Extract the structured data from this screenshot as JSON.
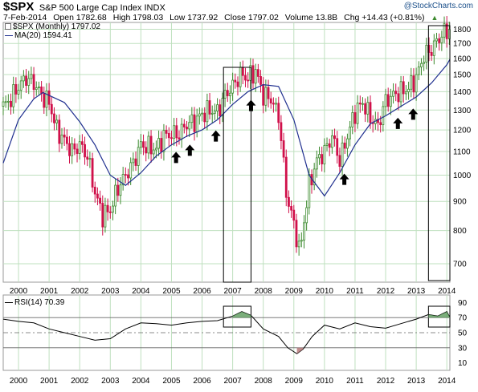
{
  "header": {
    "symbol": "$SPX",
    "index_name": "S&P 500 Large Cap Index",
    "exchange": "INDX",
    "logo_text": "@StockCharts.com",
    "date": "7-Feb-2014",
    "open": "Open 1782.68",
    "high": "High 1798.03",
    "low": "Low 1737.92",
    "close": "Close 1797.02",
    "volume": "Volume 13.8B",
    "change": "Chg +14.43 (+0.81%)",
    "change_icon": "triangle-up-icon"
  },
  "legend": {
    "price_label": "$SPX (Monthly) 1797.02",
    "ma_label": "MA(20) 1594.41"
  },
  "rsi": {
    "label": "RSI(14) 70.39"
  },
  "colors": {
    "up": "#3c8a2e",
    "down": "#d0104a",
    "ma": "#1f2f8f",
    "grid": "#bfe0bf",
    "rsi_line": "#000000",
    "rsi_fill_over": "#5a9a5a",
    "rsi_fill_under": "#b07070",
    "annotation": "#000000"
  },
  "chart_data": [
    {
      "type": "candlestick",
      "title": "$SPX S&P 500 Large Cap Index INDX",
      "yscale": "log",
      "ylim": [
        650,
        1850
      ],
      "yticks": [
        700,
        800,
        900,
        1000,
        1100,
        1200,
        1300,
        1400,
        1500,
        1600,
        1700,
        1800
      ],
      "x_start": 1999.5,
      "x_end": 2014.1,
      "xticks": [
        "2000",
        "2001",
        "2002",
        "2003",
        "2004",
        "2005",
        "2006",
        "2007",
        "2008",
        "2009",
        "2010",
        "2011",
        "2012",
        "2013",
        "2014"
      ],
      "grid": true,
      "series": [
        {
          "name": "$SPX (Monthly)",
          "x": [
            1999.5,
            1999.75,
            2000.0,
            2000.25,
            2000.5,
            2000.75,
            2001.0,
            2001.25,
            2001.5,
            2001.75,
            2002.0,
            2002.25,
            2002.5,
            2002.75,
            2003.0,
            2003.25,
            2003.5,
            2003.75,
            2004.0,
            2004.25,
            2004.5,
            2004.75,
            2005.0,
            2005.25,
            2005.5,
            2005.75,
            2006.0,
            2006.25,
            2006.5,
            2006.75,
            2007.0,
            2007.25,
            2007.5,
            2007.75,
            2008.0,
            2008.25,
            2008.5,
            2008.75,
            2009.0,
            2009.2,
            2009.5,
            2009.75,
            2010.0,
            2010.25,
            2010.5,
            2010.75,
            2011.0,
            2011.25,
            2011.5,
            2011.75,
            2012.0,
            2012.25,
            2012.5,
            2012.75,
            2013.0,
            2013.25,
            2013.5,
            2013.75,
            2014.0,
            2014.1
          ],
          "y": [
            1320,
            1360,
            1430,
            1480,
            1450,
            1380,
            1340,
            1200,
            1150,
            1100,
            1130,
            1080,
            930,
            850,
            870,
            950,
            1000,
            1050,
            1130,
            1120,
            1110,
            1170,
            1180,
            1180,
            1230,
            1240,
            1280,
            1300,
            1290,
            1380,
            1430,
            1500,
            1480,
            1520,
            1380,
            1360,
            1270,
            930,
            820,
            730,
            960,
            1060,
            1100,
            1170,
            1060,
            1170,
            1290,
            1340,
            1260,
            1220,
            1350,
            1380,
            1400,
            1420,
            1480,
            1620,
            1660,
            1740,
            1790,
            1797.02
          ]
        },
        {
          "name": "MA(20)",
          "x": [
            1999.5,
            2000.0,
            2000.5,
            2000.8,
            2001.5,
            2002.0,
            2002.5,
            2003.0,
            2003.5,
            2004.0,
            2004.5,
            2005.0,
            2005.5,
            2006.0,
            2006.5,
            2007.0,
            2007.5,
            2008.0,
            2008.5,
            2009.0,
            2009.5,
            2010.0,
            2010.5,
            2011.0,
            2011.5,
            2012.0,
            2012.5,
            2013.0,
            2013.5,
            2014.0,
            2014.1
          ],
          "y": [
            1050,
            1250,
            1360,
            1395,
            1340,
            1240,
            1130,
            1000,
            960,
            1010,
            1080,
            1130,
            1170,
            1200,
            1250,
            1330,
            1400,
            1440,
            1430,
            1250,
            1000,
            920,
            1010,
            1130,
            1230,
            1270,
            1320,
            1370,
            1450,
            1560,
            1594.41
          ]
        }
      ],
      "annotations": [
        {
          "type": "arrow",
          "direction": "up",
          "x": 2005.15
        },
        {
          "type": "arrow",
          "direction": "up",
          "x": 2005.6
        },
        {
          "type": "arrow",
          "direction": "up",
          "x": 2006.45
        },
        {
          "type": "arrow",
          "direction": "up",
          "x": 2007.6
        },
        {
          "type": "arrow",
          "direction": "up",
          "x": 2010.65
        },
        {
          "type": "arrow",
          "direction": "up",
          "x": 2012.4
        },
        {
          "type": "arrow",
          "direction": "up",
          "x": 2012.9
        },
        {
          "type": "box",
          "x": [
            2006.7,
            2007.6
          ]
        },
        {
          "type": "box",
          "x": [
            2013.4,
            2014.1
          ]
        }
      ]
    },
    {
      "type": "line",
      "title": "RSI(14) 70.39",
      "ylim": [
        0,
        100
      ],
      "yticks": [
        10,
        30,
        50,
        70,
        90
      ],
      "reference_lines": [
        70,
        50,
        30
      ],
      "grid": true,
      "x": [
        1999.5,
        2000.0,
        2000.5,
        2001.0,
        2001.5,
        2002.0,
        2002.5,
        2003.0,
        2003.5,
        2004.0,
        2004.5,
        2005.0,
        2005.5,
        2006.0,
        2006.5,
        2007.0,
        2007.3,
        2007.6,
        2008.0,
        2008.5,
        2008.8,
        2009.1,
        2009.3,
        2009.6,
        2010.0,
        2010.5,
        2011.0,
        2011.5,
        2012.0,
        2012.5,
        2013.0,
        2013.4,
        2013.7,
        2014.0,
        2014.1
      ],
      "y": [
        68,
        65,
        63,
        55,
        50,
        45,
        40,
        42,
        55,
        63,
        62,
        60,
        63,
        65,
        66,
        72,
        78,
        73,
        55,
        45,
        30,
        22,
        28,
        45,
        60,
        55,
        63,
        58,
        56,
        62,
        68,
        74,
        72,
        78,
        70.39
      ]
    }
  ]
}
